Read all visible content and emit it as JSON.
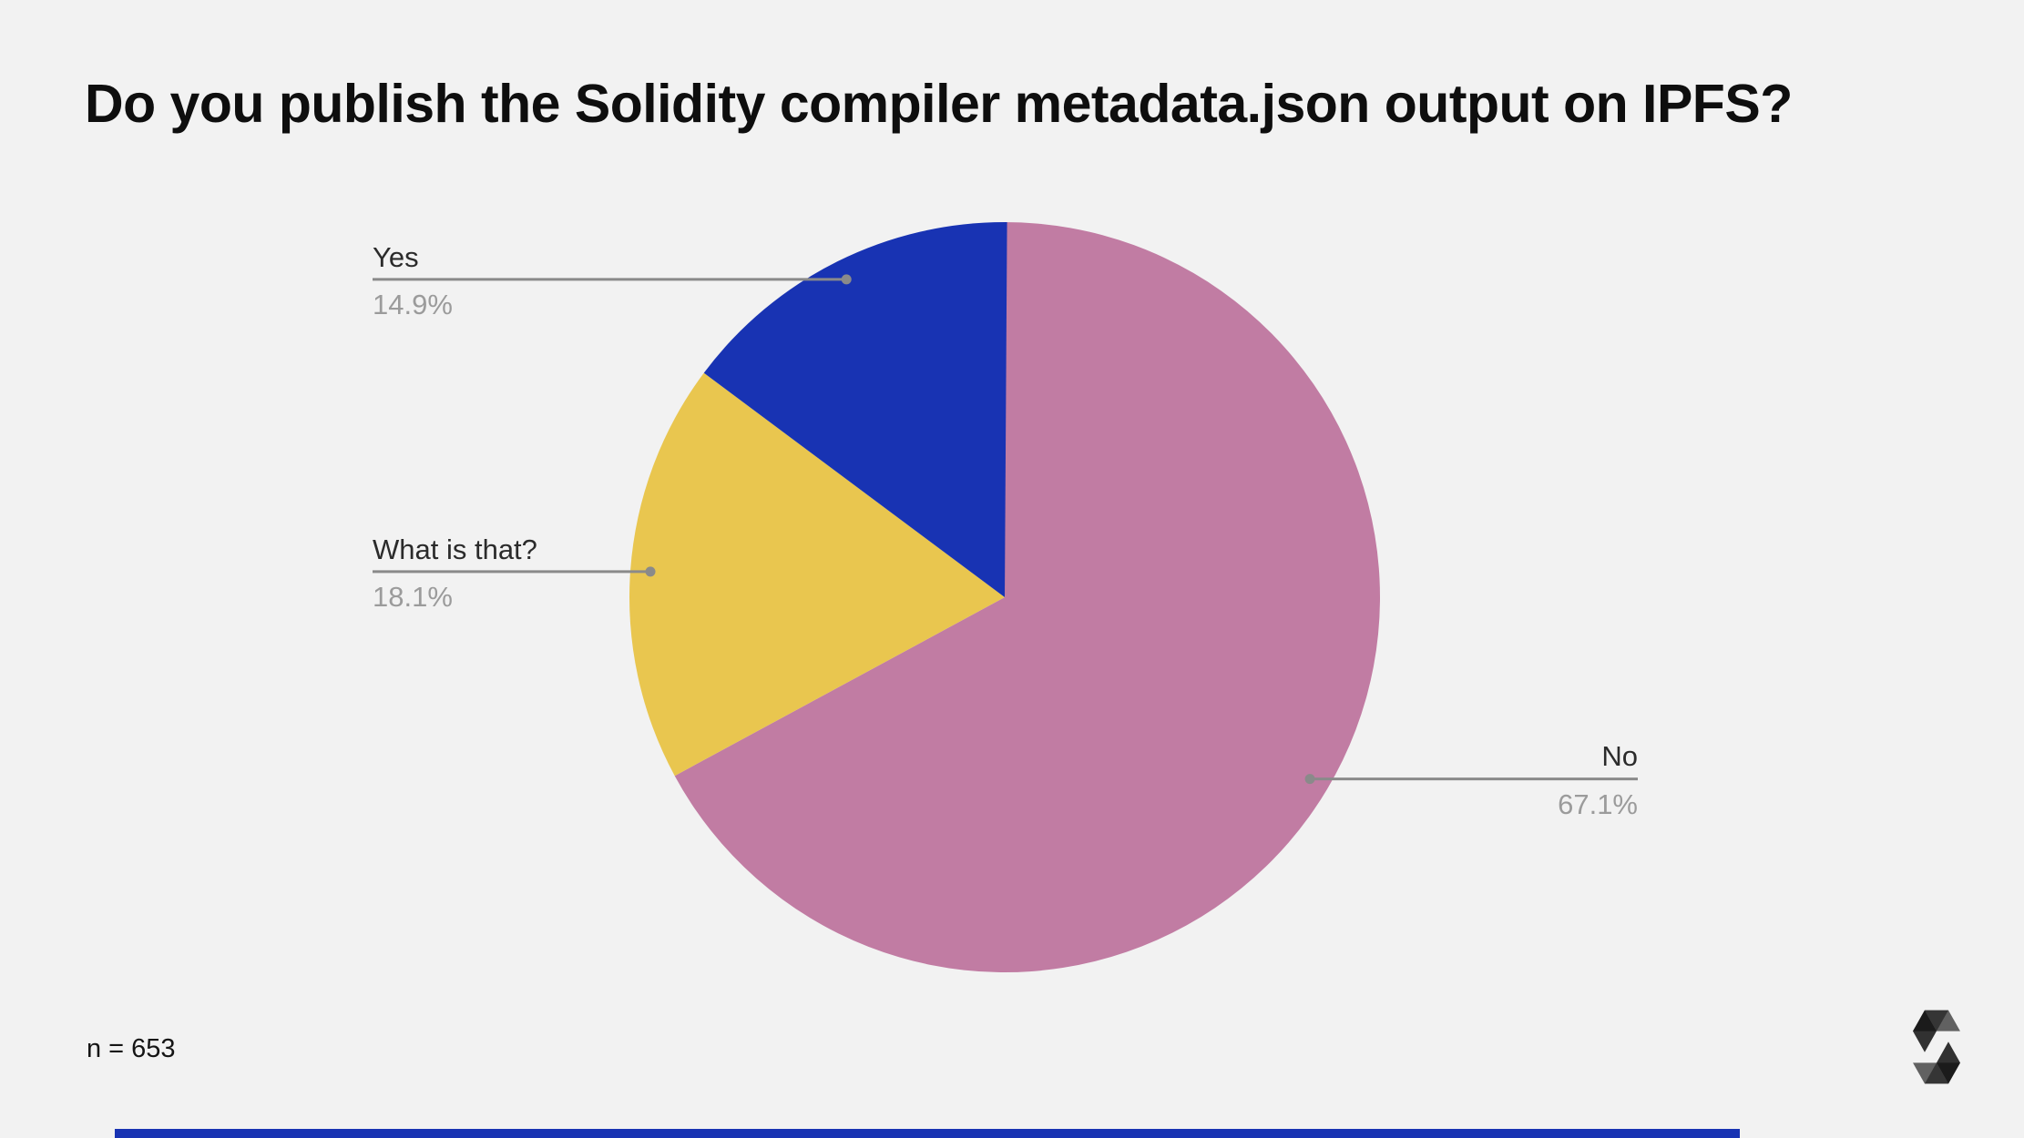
{
  "header": {
    "title": "Do you publish the Solidity compiler metadata.json output on IPFS?"
  },
  "footnote": {
    "sample_size_label": "n = 653"
  },
  "branding": {
    "logo_name": "solidity-logo",
    "accent_bar_color": "#1833B3"
  },
  "chart_data": {
    "type": "pie",
    "title": "Do you publish the Solidity compiler metadata.json output on IPFS?",
    "sample_size": 653,
    "start_angle_deg": 0,
    "direction": "clockwise",
    "legend_position": "callout-labels",
    "background_color": "#F2F2F2",
    "callout_line_color": "#8A8A8A",
    "label_text_color": "#2B2B2B",
    "percent_text_color": "#9B9B9B",
    "slices": [
      {
        "label": "No",
        "value_pct": 67.1,
        "color": "#C17CA3",
        "callout_side": "right"
      },
      {
        "label": "What is that?",
        "value_pct": 18.1,
        "color": "#E9C64F",
        "callout_side": "left"
      },
      {
        "label": "Yes",
        "value_pct": 14.9,
        "color": "#1833B3",
        "callout_side": "left"
      }
    ]
  }
}
